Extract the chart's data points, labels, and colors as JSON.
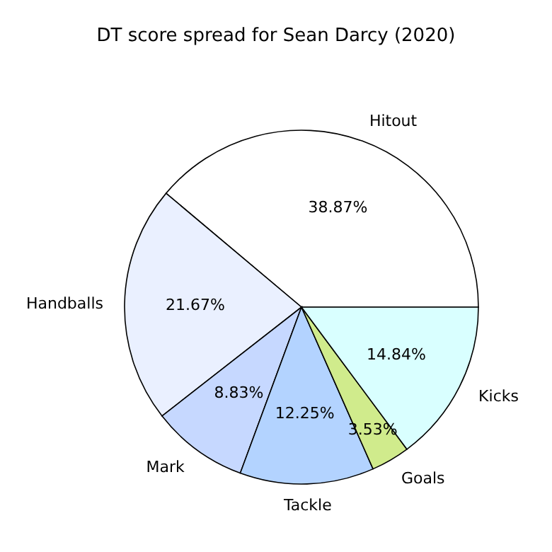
{
  "chart_data": {
    "type": "pie",
    "title": "DT score spread for Sean Darcy (2020)",
    "categories": [
      "Hitout",
      "Handballs",
      "Mark",
      "Tackle",
      "Goals",
      "Kicks"
    ],
    "values": [
      38.87,
      21.67,
      8.83,
      12.25,
      3.53,
      14.84
    ],
    "value_labels": [
      "38.87%",
      "21.67%",
      "8.83%",
      "12.25%",
      "3.53%",
      "14.84%"
    ],
    "colors": [
      "#ffffff",
      "#eaf0ff",
      "#c6d8ff",
      "#b3d3ff",
      "#d0eb8c",
      "#d9ffff"
    ],
    "legend": false
  }
}
